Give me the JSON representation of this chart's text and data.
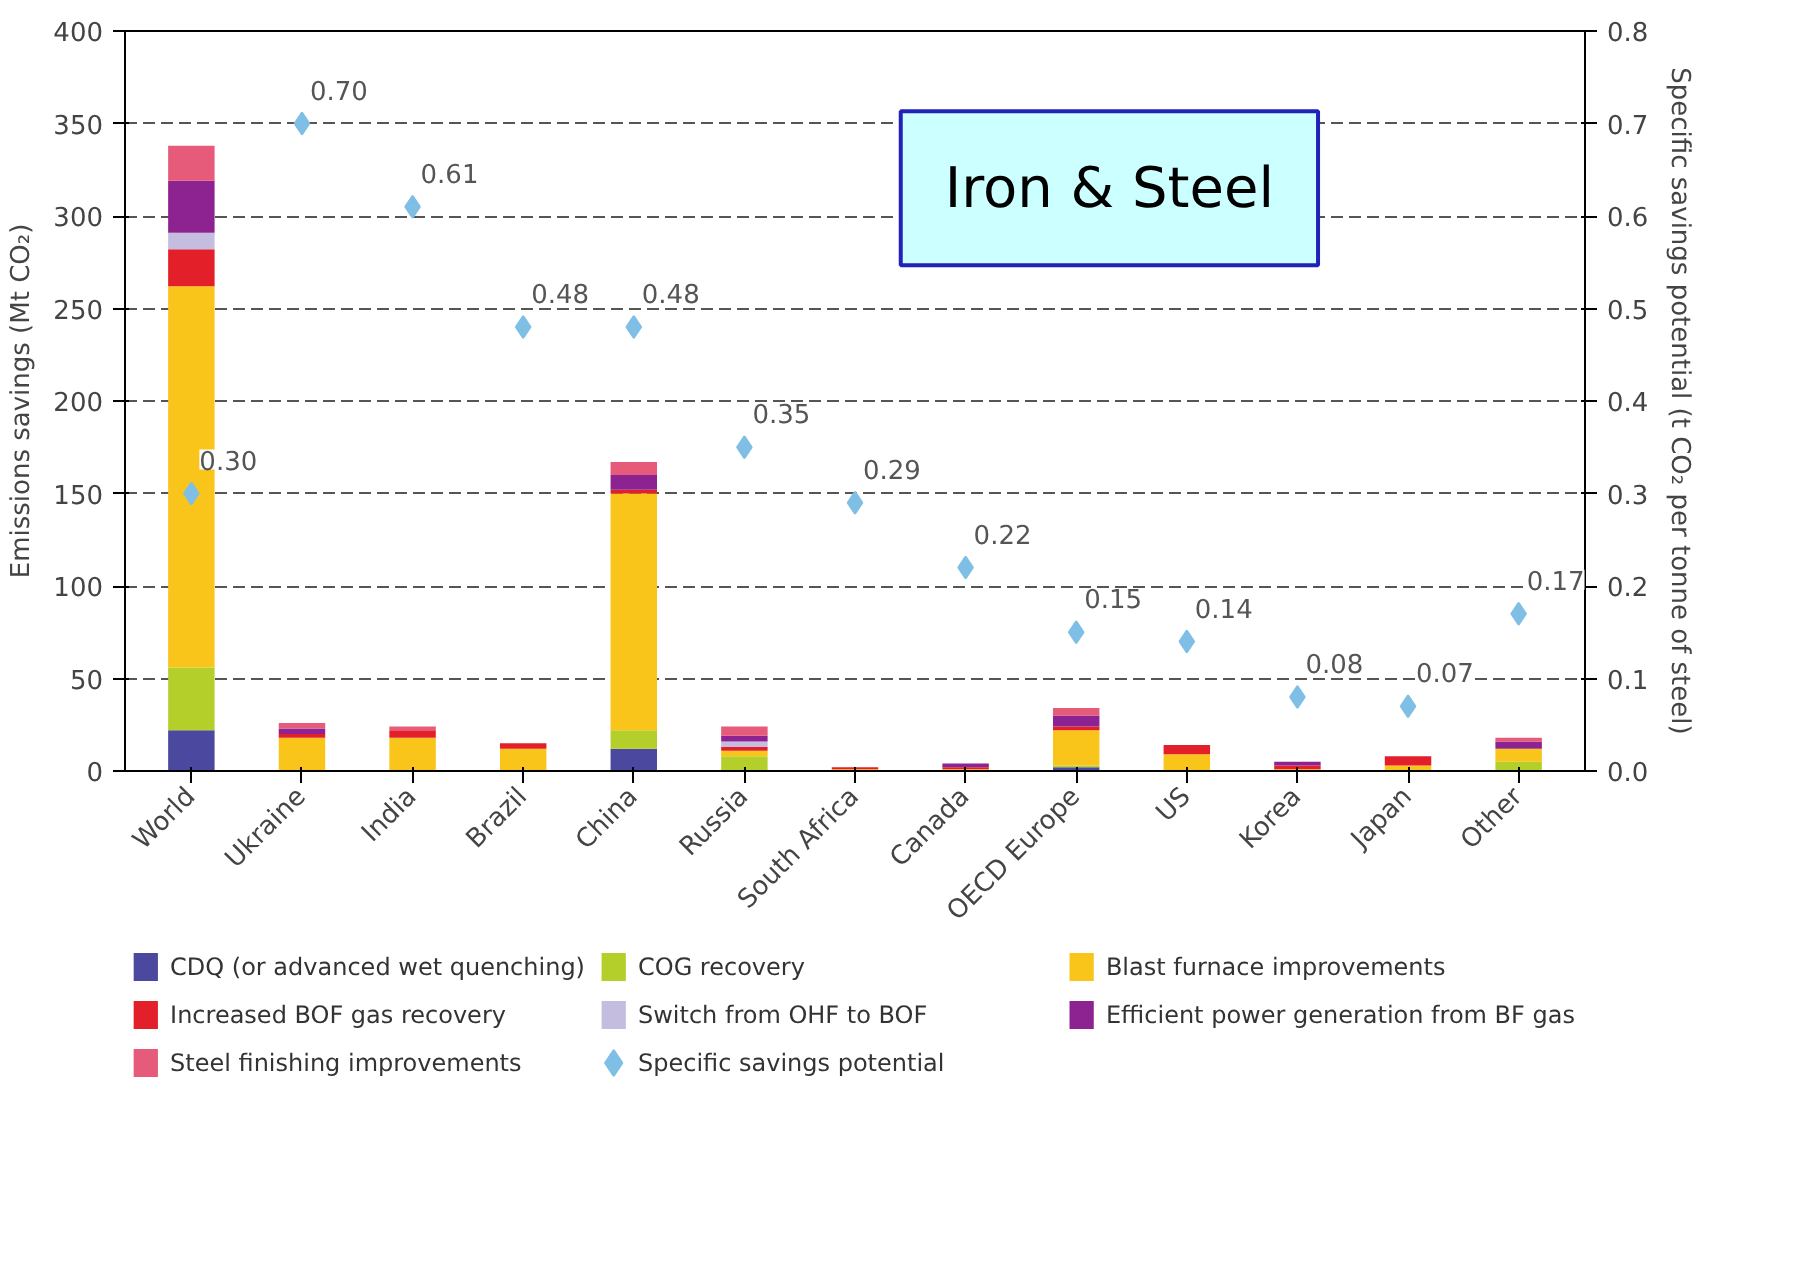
{
  "chart_data": {
    "type": "bar",
    "stacked": true,
    "ylabel": "Emissions savings (Mt CO₂)",
    "y2label": "Specific savings potential (t CO₂ per tonne of steel)",
    "categories": [
      "World",
      "Ukraine",
      "India",
      "Brazil",
      "China",
      "Russia",
      "South Africa",
      "Canada",
      "OECD Europe",
      "US",
      "Korea",
      "Japan",
      "Other"
    ],
    "ylim": [
      0,
      400
    ],
    "yticks": [
      0,
      50,
      100,
      150,
      200,
      250,
      300,
      350,
      400
    ],
    "y2lim": [
      0,
      0.8
    ],
    "y2ticks": [
      {
        "value": 0,
        "label": "0.0"
      },
      0.1,
      0.2,
      0.3,
      0.4,
      0.5,
      0.6,
      0.7,
      0.8
    ],
    "grid": "y",
    "legend": "bottom",
    "annotations": [
      "Iron & Steel"
    ],
    "series": [
      {
        "name": "CDQ (or advanced wet quenching)",
        "color": "#4b48a0",
        "values": [
          22,
          0,
          0,
          0,
          12,
          0,
          0,
          0,
          2,
          0,
          0,
          0,
          0
        ]
      },
      {
        "name": "COG recovery",
        "color": "#b5cf2a",
        "values": [
          34,
          0,
          0,
          0,
          10,
          8,
          0,
          0,
          1,
          0,
          0,
          0,
          5
        ]
      },
      {
        "name": "Blast furnace improvements",
        "color": "#f9c51b",
        "values": [
          206,
          18,
          18,
          12,
          128,
          3,
          1,
          1,
          19,
          9,
          1,
          3,
          7
        ]
      },
      {
        "name": "Increased BOF gas recovery",
        "color": "#e3202a",
        "values": [
          20,
          2,
          4,
          3,
          2,
          2,
          1,
          1,
          2,
          5,
          2,
          5,
          0
        ]
      },
      {
        "name": "Switch from OHF to BOF",
        "color": "#c5bde0",
        "values": [
          9,
          null,
          0,
          0,
          0,
          3,
          0,
          0,
          0,
          0,
          0,
          0,
          0
        ]
      },
      {
        "name": "Efficient power generation from BF gas",
        "color": "#8d2391",
        "values": [
          28,
          3,
          0,
          0,
          8,
          3,
          0,
          2,
          6,
          0,
          2,
          0,
          4
        ]
      },
      {
        "name": "Steel finishing improvements",
        "color": "#e65a7a",
        "values": [
          19,
          3,
          2,
          0,
          7,
          5,
          0,
          0,
          4,
          0,
          0,
          0,
          2
        ]
      },
      {
        "name": "Specific savings potential",
        "type": "scatter",
        "axis": "y2",
        "marker": "diamond",
        "color": "#7fbfe6",
        "data_labels": true,
        "values": [
          0.3,
          0.7,
          0.61,
          0.48,
          0.48,
          0.35,
          0.29,
          0.22,
          0.15,
          0.14,
          0.08,
          0.07,
          0.17
        ],
        "value_labels": [
          "0.30",
          "0.70",
          "0.61",
          "0.48",
          "0.48",
          "0.35",
          "0.29",
          "0.22",
          "0.15",
          "0.14",
          "0.08",
          "0.07",
          "0.17"
        ]
      }
    ]
  }
}
